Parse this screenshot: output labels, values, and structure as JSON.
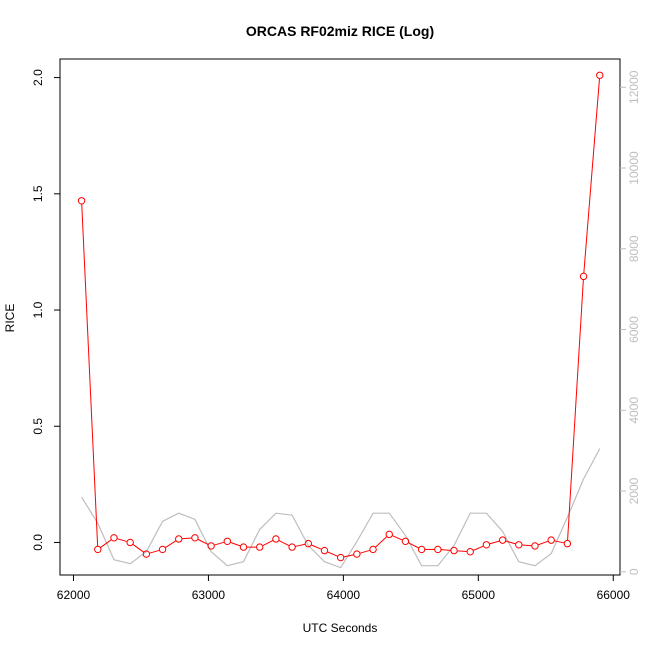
{
  "chart_data": {
    "type": "line",
    "title": "ORCAS RF02miz RICE (Log)",
    "xlabel": "UTC Seconds",
    "ylabel": "RICE",
    "xlim": [
      61900,
      66050
    ],
    "ylim": [
      -0.14,
      2.08
    ],
    "y2lim": [
      -80,
      12700
    ],
    "x_ticks": [
      62000,
      63000,
      64000,
      65000,
      66000
    ],
    "x_tick_labels": [
      "62000",
      "63000",
      "64000",
      "65000",
      "66000"
    ],
    "y_ticks": [
      0.0,
      0.5,
      1.0,
      1.5,
      2.0
    ],
    "y_tick_labels": [
      "0.0",
      "0.5",
      "1.0",
      "1.5",
      "2.0"
    ],
    "y2_ticks": [
      0,
      2000,
      4000,
      6000,
      8000,
      10000,
      12000
    ],
    "y2_tick_labels": [
      "0",
      "2000",
      "4000",
      "6000",
      "8000",
      "10000",
      "12000"
    ],
    "grid": false,
    "series": [
      {
        "axis": "left",
        "color": "#ff0000",
        "marker": "open-circle",
        "x": [
          62060,
          62180,
          62300,
          62420,
          62540,
          62660,
          62780,
          62900,
          63020,
          63140,
          63260,
          63380,
          63500,
          63620,
          63740,
          63860,
          63980,
          64100,
          64220,
          64340,
          64460,
          64580,
          64700,
          64820,
          64940,
          65060,
          65180,
          65300,
          65420,
          65540,
          65660,
          65780,
          65900
        ],
        "values": [
          1.47,
          -0.03,
          0.02,
          0.0,
          -0.05,
          -0.03,
          0.015,
          0.02,
          -0.015,
          0.005,
          -0.02,
          -0.02,
          0.015,
          -0.02,
          -0.005,
          -0.035,
          -0.065,
          -0.05,
          -0.03,
          0.035,
          0.005,
          -0.03,
          -0.03,
          -0.035,
          -0.04,
          -0.01,
          0.01,
          -0.01,
          -0.015,
          0.01,
          -0.005,
          1.145,
          2.01
        ]
      },
      {
        "axis": "right",
        "color": "#bebebe",
        "marker": "none",
        "x": [
          62060,
          62180,
          62300,
          62420,
          62540,
          62660,
          62780,
          62900,
          63020,
          63140,
          63260,
          63380,
          63500,
          63620,
          63740,
          63860,
          63980,
          64100,
          64220,
          64340,
          64460,
          64580,
          64700,
          64820,
          64940,
          65060,
          65180,
          65300,
          65420,
          65540,
          65660,
          65780,
          65900
        ],
        "values": [
          1850,
          1200,
          300,
          200,
          500,
          1250,
          1450,
          1300,
          500,
          150,
          250,
          1050,
          1450,
          1400,
          650,
          250,
          100,
          750,
          1450,
          1450,
          900,
          150,
          150,
          650,
          1450,
          1450,
          1000,
          250,
          150,
          450,
          1350,
          2300,
          3050
        ]
      }
    ]
  }
}
